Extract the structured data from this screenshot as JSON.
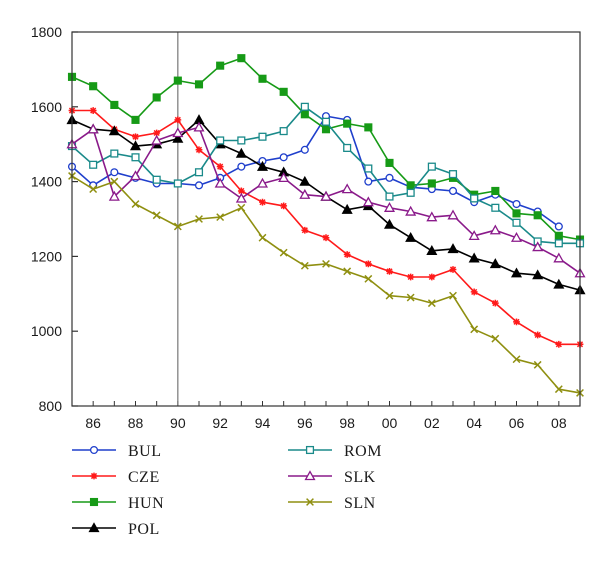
{
  "chart_data": {
    "type": "line",
    "title": "",
    "xlabel": "",
    "ylabel": "",
    "xlim": [
      1985,
      2009
    ],
    "ylim": [
      800,
      1800
    ],
    "x": [
      1985,
      1986,
      1987,
      1988,
      1989,
      1990,
      1991,
      1992,
      1993,
      1994,
      1995,
      1996,
      1997,
      1998,
      1999,
      2000,
      2001,
      2002,
      2003,
      2004,
      2005,
      2006,
      2007,
      2008,
      2009
    ],
    "x_ticks": [
      1986,
      1988,
      1990,
      1992,
      1994,
      1996,
      1998,
      2000,
      2002,
      2004,
      2006,
      2008
    ],
    "x_tick_labels": [
      "86",
      "88",
      "90",
      "92",
      "94",
      "96",
      "98",
      "00",
      "02",
      "04",
      "06",
      "08"
    ],
    "y_ticks": [
      800,
      1000,
      1200,
      1400,
      1600,
      1800
    ],
    "y_tick_labels": [
      "800",
      "1000",
      "1200",
      "1400",
      "1600",
      "1800"
    ],
    "vertical_reference_line_x": 1990,
    "grid": false,
    "legend_position": "bottom",
    "series": [
      {
        "name": "BUL",
        "color": "#1f3fcc",
        "marker": "circle-open",
        "values": [
          1440,
          1390,
          1425,
          1410,
          1395,
          1395,
          1390,
          1410,
          1440,
          1455,
          1465,
          1485,
          1575,
          1565,
          1400,
          1410,
          1385,
          1380,
          1375,
          1345,
          1365,
          1340,
          1320,
          1280,
          null
        ]
      },
      {
        "name": "CZE",
        "color": "#ff1a1a",
        "marker": "asterisk",
        "values": [
          1590,
          1590,
          1540,
          1520,
          1530,
          1565,
          1485,
          1440,
          1375,
          1345,
          1335,
          1270,
          1250,
          1205,
          1180,
          1160,
          1145,
          1145,
          1165,
          1105,
          1075,
          1025,
          990,
          965,
          965
        ]
      },
      {
        "name": "HUN",
        "color": "#169a16",
        "marker": "square-filled",
        "values": [
          1680,
          1655,
          1605,
          1565,
          1625,
          1670,
          1660,
          1710,
          1730,
          1675,
          1640,
          1580,
          1540,
          1555,
          1545,
          1450,
          1390,
          1395,
          1410,
          1365,
          1375,
          1315,
          1310,
          1255,
          1245
        ]
      },
      {
        "name": "POL",
        "color": "#000000",
        "marker": "triangle-filled",
        "values": [
          1565,
          1540,
          1535,
          1495,
          1500,
          1515,
          1565,
          1500,
          1475,
          1440,
          1425,
          1400,
          1360,
          1325,
          1335,
          1285,
          1250,
          1215,
          1220,
          1195,
          1180,
          1155,
          1150,
          1125,
          1110
        ]
      },
      {
        "name": "ROM",
        "color": "#1a8a8a",
        "marker": "square-open",
        "values": [
          1495,
          1445,
          1475,
          1465,
          1405,
          1395,
          1425,
          1510,
          1510,
          1520,
          1535,
          1600,
          1560,
          1490,
          1435,
          1360,
          1370,
          1440,
          1420,
          1355,
          1330,
          1290,
          1240,
          1235,
          1235
        ]
      },
      {
        "name": "SLK",
        "color": "#8a1a8a",
        "marker": "triangle-open",
        "values": [
          1500,
          1540,
          1360,
          1415,
          1510,
          1530,
          1545,
          1395,
          1355,
          1395,
          1410,
          1365,
          1360,
          1380,
          1345,
          1330,
          1320,
          1305,
          1310,
          1255,
          1270,
          1250,
          1225,
          1195,
          1155
        ]
      },
      {
        "name": "SLN",
        "color": "#8f8f10",
        "marker": "x",
        "values": [
          1415,
          1380,
          1400,
          1340,
          1310,
          1280,
          1300,
          1305,
          1330,
          1250,
          1210,
          1175,
          1180,
          1160,
          1140,
          1095,
          1090,
          1075,
          1095,
          1005,
          980,
          925,
          910,
          845,
          835
        ]
      }
    ]
  }
}
